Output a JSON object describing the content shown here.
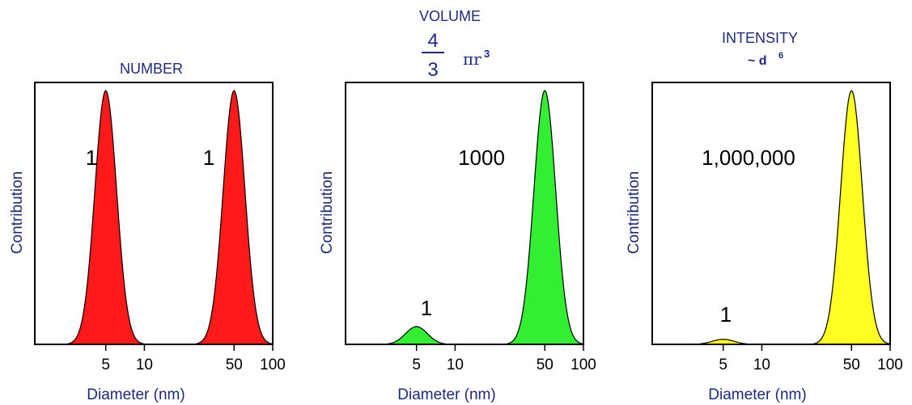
{
  "chart_data": [
    {
      "type": "area",
      "title": "NUMBER",
      "xlabel": "Diameter (nm)",
      "ylabel": "Contribution",
      "x_scale": "log",
      "x_ticks": [
        "5",
        "10",
        "50",
        "100"
      ],
      "xlim": [
        1.4,
        100
      ],
      "ylim": [
        0,
        1.0
      ],
      "fill_color": "#ff1a1a",
      "peaks": [
        {
          "x": 5,
          "height": 1.0,
          "label": "1"
        },
        {
          "x": 50,
          "height": 1.0,
          "label": "1"
        }
      ]
    },
    {
      "type": "area",
      "title": "VOLUME",
      "formula": {
        "numerator": "4",
        "denominator": "3",
        "text": "πr",
        "sup": "3"
      },
      "xlabel": "Diameter (nm)",
      "ylabel": "Contribution",
      "x_scale": "log",
      "x_ticks": [
        "5",
        "10",
        "50",
        "100"
      ],
      "xlim": [
        1.4,
        100
      ],
      "ylim": [
        0,
        1.0
      ],
      "fill_color": "#33ee33",
      "peaks": [
        {
          "x": 5,
          "height": 0.07,
          "label": "1"
        },
        {
          "x": 50,
          "height": 1.0,
          "label": "1000"
        }
      ]
    },
    {
      "type": "area",
      "title": "INTENSITY",
      "formula": {
        "text": "~ d",
        "sup": "6"
      },
      "xlabel": "Diameter (nm)",
      "ylabel": "Contribution",
      "x_scale": "log",
      "x_ticks": [
        "5",
        "10",
        "50",
        "100"
      ],
      "xlim": [
        1.4,
        100
      ],
      "ylim": [
        0,
        1.0
      ],
      "fill_color": "#ffff22",
      "peaks": [
        {
          "x": 5,
          "height": 0.02,
          "label": "1"
        },
        {
          "x": 50,
          "height": 1.0,
          "label": "1,000,000"
        }
      ]
    }
  ]
}
